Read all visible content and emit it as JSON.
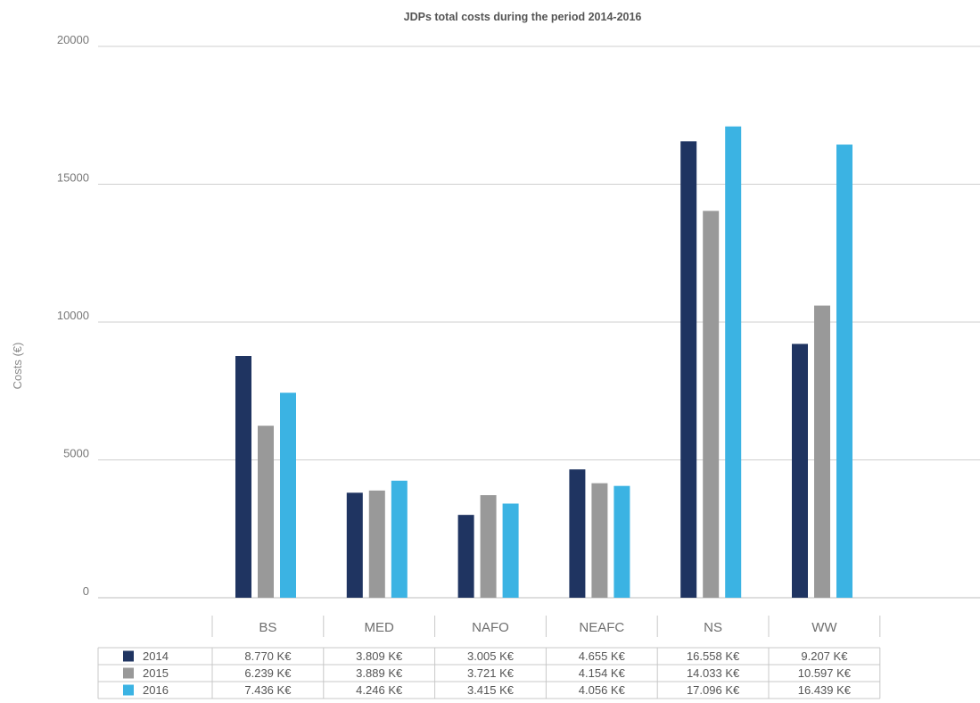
{
  "chart_data": {
    "type": "bar",
    "title": "JDPs total costs during the period 2014-2016",
    "ylabel": "Costs (€)",
    "xlabel": "",
    "ylim": [
      0,
      20000
    ],
    "yticks": [
      "0",
      "5000",
      "10000",
      "15000",
      "20000"
    ],
    "grid": true,
    "legend_placement": "table-left",
    "categories": [
      "BS",
      "MED",
      "NAFO",
      "NEAFC",
      "NS",
      "WW"
    ],
    "series": [
      {
        "name": "2014",
        "color": "#1f3461",
        "values": [
          8770,
          3809,
          3005,
          4655,
          16558,
          9207
        ],
        "table": [
          "8.770 K€",
          "3.809 K€",
          "3.005 K€",
          "4.655 K€",
          "16.558 K€",
          "9.207 K€"
        ]
      },
      {
        "name": "2015",
        "color": "#999999",
        "values": [
          6239,
          3889,
          3721,
          4154,
          14033,
          10597
        ],
        "table": [
          "6.239 K€",
          "3.889 K€",
          "3.721 K€",
          "4.154 K€",
          "14.033 K€",
          "10.597 K€"
        ]
      },
      {
        "name": "2016",
        "color": "#3bb3e3",
        "values": [
          7436,
          4246,
          3415,
          4056,
          17096,
          16439
        ],
        "table": [
          "7.436 K€",
          "4.246 K€",
          "3.415 K€",
          "4.056 K€",
          "17.096 K€",
          "16.439 K€"
        ]
      }
    ]
  }
}
